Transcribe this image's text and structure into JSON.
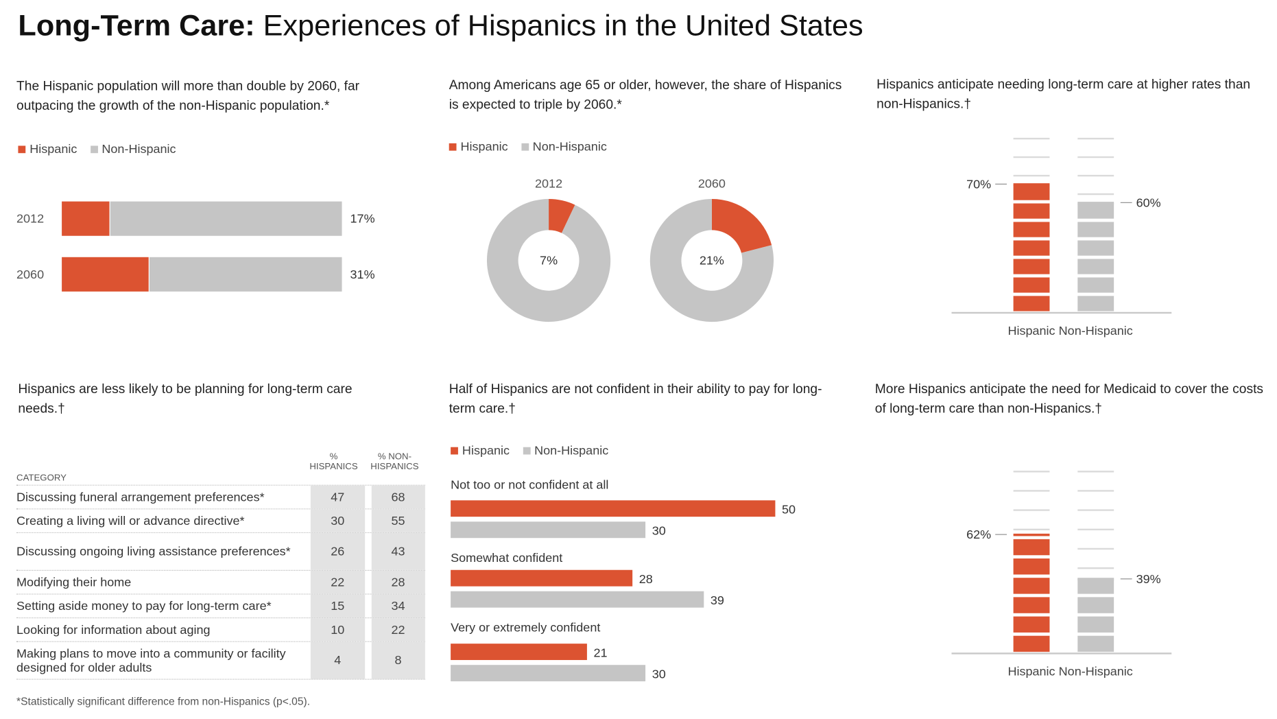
{
  "title": {
    "bold": "Long-Term Care:",
    "rest": " Experiences of Hispanics in the United States"
  },
  "colors": {
    "hispanic": "#dc5331",
    "non_hispanic": "#c5c5c5",
    "line": "#d0d0d0"
  },
  "legend": {
    "hispanic": "Hispanic",
    "non_hispanic": "Non-Hispanic"
  },
  "panel1": {
    "title": "The Hispanic population will more than double by 2060, far outpacing the growth of the non-Hispanic population.*"
  },
  "panel2": {
    "title": "Among Americans age 65 or older, however, the share of Hispanics is expected to triple by 2060.*"
  },
  "panel3": {
    "title": "Hispanics anticipate needing long-term care at higher rates than non-Hispanics.†"
  },
  "panel4": {
    "title": "Hispanics are less likely to be planning for long-term care needs.†"
  },
  "panel5": {
    "title": "Half of Hispanics are not confident in their ability to pay for long-term care.†"
  },
  "panel6": {
    "title": "More Hispanics anticipate the need for Medicaid to cover the costs of long-term care than non-Hispanics.†"
  },
  "table": {
    "col_category": "CATEGORY",
    "col_h_line1": "%",
    "col_h_line2": "HISPANICS",
    "col_nh_line1": "% NON-",
    "col_nh_line2": "HISPANICS",
    "rows": [
      {
        "category": "Discussing funeral arrangement preferences*",
        "hispanic": "47",
        "non_hispanic": "68"
      },
      {
        "category": "Creating a living will or advance directive*",
        "hispanic": "30",
        "non_hispanic": "55"
      },
      {
        "category": "Discussing ongoing living assistance preferences*",
        "hispanic": "26",
        "non_hispanic": "43"
      },
      {
        "category": "Modifying their home",
        "hispanic": "22",
        "non_hispanic": "28"
      },
      {
        "category": "Setting aside money to pay for long-term care*",
        "hispanic": "15",
        "non_hispanic": "34"
      },
      {
        "category": "Looking for information about aging",
        "hispanic": "10",
        "non_hispanic": "22"
      },
      {
        "category": "Making plans to move into a community or facility designed for older adults",
        "hispanic": "4",
        "non_hispanic": "8"
      }
    ]
  },
  "footnote": "*Statistically significant difference from non-Hispanics (p<.05).",
  "chart_data": [
    {
      "type": "bar",
      "stacked": true,
      "orientation": "horizontal",
      "title": "The Hispanic population will more than double by 2060, far outpacing the growth of the non-Hispanic population.*",
      "categories": [
        "2012",
        "2060"
      ],
      "series": [
        {
          "name": "Hispanic",
          "values": [
            17,
            31
          ]
        },
        {
          "name": "Non-Hispanic",
          "values": [
            83,
            69
          ]
        }
      ],
      "labels": [
        "17%",
        "31%"
      ],
      "xlim": [
        0,
        100
      ]
    },
    {
      "type": "pie",
      "donut": true,
      "title": "Among Americans age 65 or older, however, the share of Hispanics is expected to triple by 2060.*",
      "charts": [
        {
          "label": "2012",
          "center_label": "7%",
          "slices": [
            {
              "name": "Hispanic",
              "value": 7
            },
            {
              "name": "Non-Hispanic",
              "value": 93
            }
          ]
        },
        {
          "label": "2060",
          "center_label": "21%",
          "slices": [
            {
              "name": "Hispanic",
              "value": 21
            },
            {
              "name": "Non-Hispanic",
              "value": 79
            }
          ]
        }
      ]
    },
    {
      "type": "bar",
      "title": "Hispanics anticipate needing long-term care at higher rates than non-Hispanics.†",
      "categories": [
        "Hispanic",
        "Non-Hispanic"
      ],
      "values": [
        70,
        60
      ],
      "labels": [
        "70%",
        "60%"
      ],
      "ylim": [
        0,
        100
      ]
    },
    {
      "type": "table",
      "title": "Hispanics are less likely to be planning for long-term care needs.†",
      "columns": [
        "CATEGORY",
        "% HISPANICS",
        "% NON-HISPANICS"
      ]
    },
    {
      "type": "bar",
      "orientation": "horizontal",
      "title": "Half of Hispanics are not confident in their ability to pay for long-term care.†",
      "categories": [
        "Not too or not confident at all",
        "Somewhat confident",
        "Very or extremely confident"
      ],
      "series": [
        {
          "name": "Hispanic",
          "values": [
            50,
            28,
            21
          ]
        },
        {
          "name": "Non-Hispanic",
          "values": [
            30,
            39,
            30
          ]
        }
      ],
      "xlim": [
        0,
        50
      ]
    },
    {
      "type": "bar",
      "title": "More Hispanics anticipate the need for Medicaid to cover the costs of long-term care than non-Hispanics.†",
      "categories": [
        "Hispanic",
        "Non-Hispanic"
      ],
      "values": [
        62,
        39
      ],
      "labels": [
        "62%",
        "39%"
      ],
      "ylim": [
        0,
        100
      ]
    }
  ]
}
